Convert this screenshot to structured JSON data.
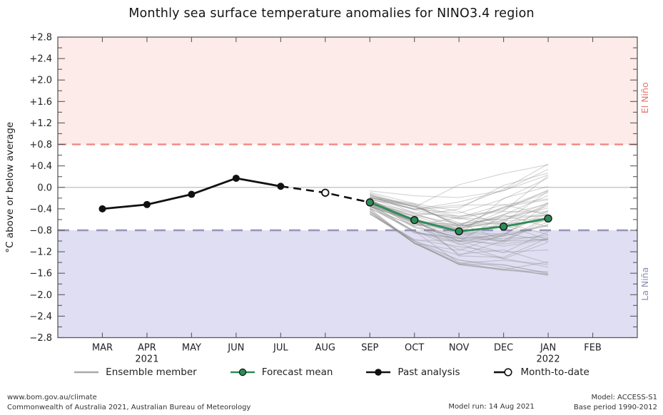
{
  "chart_data": {
    "type": "line",
    "title": "Monthly sea surface temperature anomalies for NINO3.4 region",
    "ylabel": "°C above or below average",
    "ylim": [
      -2.8,
      2.8
    ],
    "ytick_step": 0.4,
    "ytick_labels": [
      "+2.8",
      "+2.4",
      "+2.0",
      "+1.6",
      "+1.2",
      "+0.8",
      "+0.4",
      "0.0",
      "−0.4",
      "−0.8",
      "−1.2",
      "−1.6",
      "−2.0",
      "−2.4",
      "−2.8"
    ],
    "categories": [
      "MAR",
      "APR",
      "MAY",
      "JUN",
      "JUL",
      "AUG",
      "SEP",
      "OCT",
      "NOV",
      "DEC",
      "JAN",
      "FEB"
    ],
    "year_labels": [
      {
        "month_index": 1,
        "label": "2021"
      },
      {
        "month_index": 10,
        "label": "2022"
      }
    ],
    "grid": "zero-line-only",
    "thresholds": {
      "el_nino_value": 0.8,
      "la_nina_value": -0.8,
      "el_nino_label": "El Niño",
      "la_nina_label": "La Niña"
    },
    "series": [
      {
        "name": "Past analysis",
        "month_indices": [
          0,
          1,
          2,
          3,
          4
        ],
        "values": [
          -0.4,
          -0.32,
          -0.13,
          0.17,
          0.02
        ],
        "style": "solid-black-dots"
      },
      {
        "name": "Month-to-date",
        "month_indices": [
          4,
          5,
          6
        ],
        "values": [
          0.02,
          -0.1,
          -0.28
        ],
        "marker_month_index": 5,
        "marker_value": -0.1,
        "style": "dashed-black-open-circle"
      },
      {
        "name": "Forecast mean",
        "month_indices": [
          6,
          7,
          8,
          9,
          10
        ],
        "values": [
          -0.28,
          -0.61,
          -0.82,
          -0.73,
          -0.58
        ],
        "style": "solid-green-dots"
      }
    ],
    "ensemble": {
      "name": "Ensemble member",
      "month_indices": [
        6,
        7,
        8,
        9,
        10
      ],
      "count": 60,
      "seed": 7,
      "mean": [
        -0.28,
        -0.61,
        -0.82,
        -0.73,
        -0.58
      ],
      "sigma": [
        0.13,
        0.27,
        0.4,
        0.48,
        0.55
      ],
      "range": [
        [
          -0.5,
          -0.05
        ],
        [
          -1.05,
          -0.08
        ],
        [
          -1.45,
          0.12
        ],
        [
          -1.55,
          0.3
        ],
        [
          -1.65,
          0.45
        ]
      ]
    },
    "colors": {
      "el_nino_fill": "#fcebe8",
      "el_nino_line": "#f0837b",
      "el_nino_text": "#e4736e",
      "la_nina_fill": "#dfdef2",
      "la_nina_line": "#9897be",
      "la_nina_text": "#8b8bb8",
      "forecast": "#2e8b57",
      "past": "#111111",
      "ensemble": "#8c8c8c",
      "zero_line": "#c9c9c9",
      "frame": "#5a5a5a",
      "tick_text": "#222222"
    }
  },
  "legend": {
    "items": [
      {
        "label": "Ensemble member",
        "marker": "line",
        "color": "#a9a9a9"
      },
      {
        "label": "Forecast mean",
        "marker": "dot-line",
        "color": "#2e8b57"
      },
      {
        "label": "Past analysis",
        "marker": "dot-line",
        "color": "#111111"
      },
      {
        "label": "Month-to-date",
        "marker": "open-circle",
        "color": "#111111"
      }
    ]
  },
  "footer": {
    "left_line1": "www.bom.gov.au/climate",
    "left_line2": "Commonwealth of Australia 2021, Australian Bureau of Meteorology",
    "model_run": "Model run: 14 Aug 2021",
    "right_line1": "Model: ACCESS-S1",
    "right_line2": "Base period 1990-2012"
  }
}
